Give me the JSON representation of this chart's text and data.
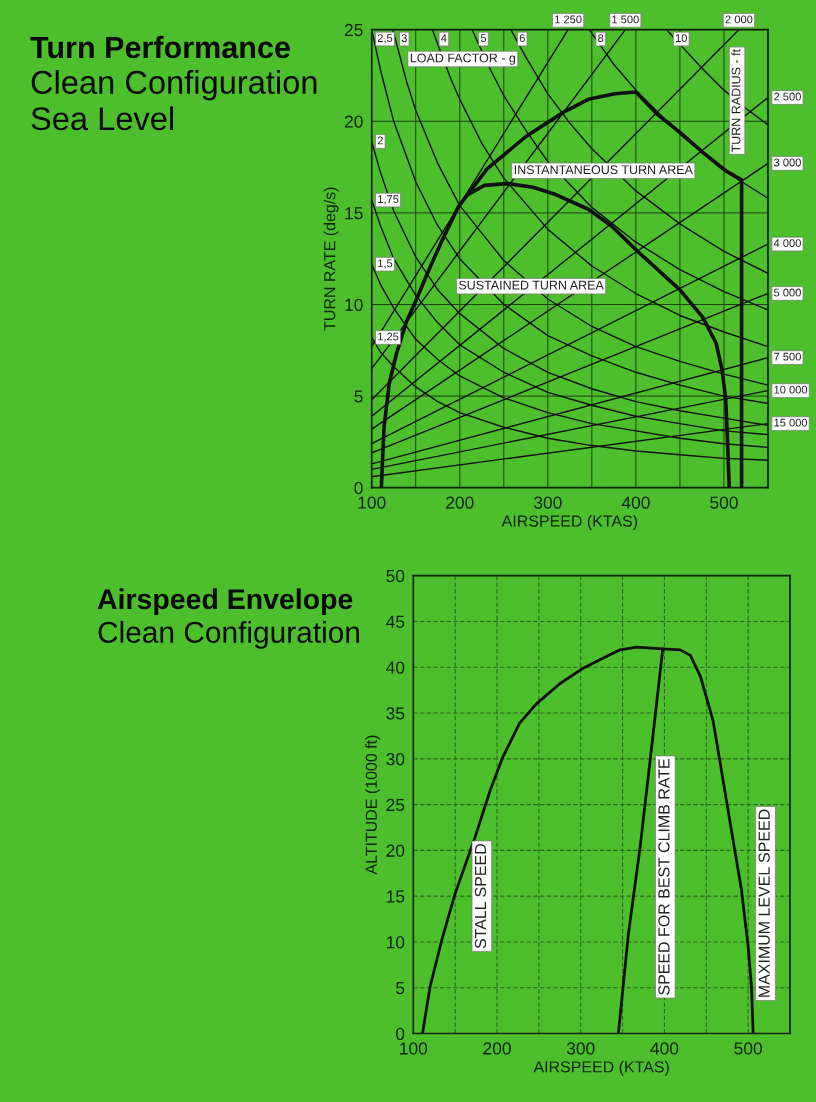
{
  "chart_data": [
    {
      "type": "line",
      "title": "Turn Performance",
      "subtitle": "Clean Configuration\nSea Level",
      "xlabel": "AIRSPEED (KTAS)",
      "ylabel": "TURN RATE (deg/s)",
      "xlim": [
        100,
        550
      ],
      "ylim": [
        0,
        25
      ],
      "xticks": [
        100,
        {
          "value": 150,
          "label": null
        },
        200,
        {
          "value": 250,
          "label": null
        },
        300,
        {
          "value": 350,
          "label": null
        },
        400,
        {
          "value": 450,
          "label": null
        },
        500,
        {
          "value": 550,
          "label": null
        }
      ],
      "yticks": [
        0,
        5,
        10,
        15,
        20,
        25
      ],
      "grid": true,
      "annotations": [
        "LOAD FACTOR - g",
        "TURN RADIUS - ft",
        {
          "text": "INSTANTANEOUS TURN AREA",
          "x": 363,
          "y": 17.3
        },
        {
          "text": "SUSTAINED TURN AREA",
          "x": 281,
          "y": 11.0
        }
      ],
      "series": [
        {
          "name": "1,25",
          "color": "#111111",
          "x": [
            100,
            110,
            125,
            150,
            175,
            200,
            250,
            300,
            350,
            400,
            450,
            500,
            550
          ],
          "values": [
            8.2,
            7.4,
            6.6,
            5.5,
            4.7,
            4.1,
            3.3,
            2.7,
            2.3,
            2.0,
            1.8,
            1.6,
            1.5
          ]
        },
        {
          "name": "1,5",
          "color": "#111111",
          "x": [
            100,
            110,
            125,
            150,
            175,
            200,
            250,
            300,
            350,
            400,
            450,
            500,
            550
          ],
          "values": [
            12.2,
            11.1,
            9.8,
            8.1,
            7.0,
            6.1,
            4.9,
            4.1,
            3.5,
            3.1,
            2.7,
            2.4,
            2.2
          ]
        },
        {
          "name": "1,75",
          "color": "#111111",
          "x": [
            100,
            110,
            125,
            150,
            175,
            200,
            250,
            300,
            350,
            400,
            450,
            500,
            550
          ],
          "values": [
            15.7,
            14.3,
            12.5,
            10.5,
            9.0,
            7.8,
            6.3,
            5.2,
            4.5,
            3.9,
            3.5,
            3.1,
            2.9
          ]
        },
        {
          "name": "2",
          "color": "#111111",
          "x": [
            100,
            110,
            125,
            150,
            175,
            200,
            250,
            300,
            350,
            400,
            450,
            500,
            550
          ],
          "values": [
            18.9,
            17.2,
            15.1,
            12.6,
            10.8,
            9.5,
            7.6,
            6.3,
            5.4,
            4.7,
            4.2,
            3.8,
            3.4
          ]
        },
        {
          "name": "2,5",
          "color": "#111111",
          "x": [
            100,
            110,
            125,
            150,
            175,
            200,
            250,
            300,
            350,
            400,
            450,
            500,
            550
          ],
          "values": [
            25.0,
            22.8,
            20.0,
            16.7,
            14.3,
            12.5,
            10.0,
            8.3,
            7.2,
            6.3,
            5.6,
            5.0,
            4.6
          ]
        },
        {
          "name": "3",
          "color": "#111111",
          "x": [
            124,
            140,
            150,
            175,
            200,
            250,
            300,
            350,
            400,
            450,
            500,
            550
          ],
          "values": [
            25.0,
            22.1,
            20.6,
            17.7,
            15.4,
            12.4,
            10.3,
            8.8,
            7.7,
            6.9,
            6.2,
            5.6
          ]
        },
        {
          "name": "4",
          "color": "#111111",
          "x": [
            169,
            175,
            190,
            200,
            225,
            250,
            300,
            350,
            400,
            450,
            500,
            550
          ],
          "values": [
            25.0,
            24.2,
            22.3,
            21.2,
            18.8,
            16.9,
            14.1,
            12.1,
            10.6,
            9.4,
            8.5,
            7.7
          ]
        },
        {
          "name": "5",
          "color": "#111111",
          "x": [
            214,
            235,
            250,
            275,
            300,
            350,
            400,
            450,
            500,
            550
          ],
          "values": [
            25.0,
            22.8,
            21.4,
            19.5,
            17.8,
            15.3,
            13.4,
            11.9,
            10.7,
            9.7
          ]
        },
        {
          "name": "6",
          "color": "#111111",
          "x": [
            258,
            275,
            300,
            325,
            350,
            400,
            450,
            500,
            550
          ],
          "values": [
            25.0,
            23.5,
            21.5,
            19.9,
            18.5,
            16.2,
            14.4,
            12.9,
            11.7
          ]
        },
        {
          "name": "8",
          "color": "#111111",
          "x": [
            347,
            375,
            400,
            450,
            500,
            550
          ],
          "values": [
            25.0,
            23.1,
            21.7,
            19.3,
            17.3,
            15.8
          ]
        },
        {
          "name": "10",
          "color": "#111111",
          "x": [
            435,
            450,
            475,
            500,
            525,
            550
          ],
          "values": [
            25.0,
            24.2,
            22.9,
            21.7,
            20.7,
            19.8
          ]
        },
        {
          "name": "1 250",
          "color": "#111111",
          "x": [
            100,
            323
          ],
          "values": [
            7.7,
            25.0
          ]
        },
        {
          "name": "1 500",
          "color": "#111111",
          "x": [
            100,
            388
          ],
          "values": [
            6.5,
            25.0
          ]
        },
        {
          "name": "2 000",
          "color": "#111111",
          "x": [
            100,
            517
          ],
          "values": [
            4.8,
            25.0
          ]
        },
        {
          "name": "2 500",
          "color": "#111111",
          "x": [
            100,
            550
          ],
          "values": [
            3.9,
            21.3
          ]
        },
        {
          "name": "3 000",
          "color": "#111111",
          "x": [
            100,
            550
          ],
          "values": [
            3.2,
            17.7
          ]
        },
        {
          "name": "4 000",
          "color": "#111111",
          "x": [
            100,
            550
          ],
          "values": [
            2.4,
            13.3
          ]
        },
        {
          "name": "5 000",
          "color": "#111111",
          "x": [
            100,
            550
          ],
          "values": [
            1.9,
            10.6
          ]
        },
        {
          "name": "7 500",
          "color": "#111111",
          "x": [
            100,
            550
          ],
          "values": [
            1.3,
            7.1
          ]
        },
        {
          "name": "10 000",
          "color": "#111111",
          "x": [
            100,
            550
          ],
          "values": [
            1.0,
            5.3
          ]
        },
        {
          "name": "15 000",
          "color": "#111111",
          "x": [
            100,
            550
          ],
          "values": [
            0.6,
            3.5
          ]
        },
        {
          "color": "#111111",
          "x": [
            111,
            112,
            114,
            120,
            128,
            139,
            151,
            165,
            180,
            198,
            231,
            276,
            318,
            346,
            376,
            400,
            424,
            450,
            476,
            502,
            520,
            520
          ],
          "values": [
            0,
            1.2,
            3.3,
            5.7,
            7.3,
            9.0,
            10.3,
            11.9,
            13.5,
            15.3,
            17.4,
            19.2,
            20.5,
            21.2,
            21.5,
            21.6,
            20.4,
            19.4,
            18.3,
            17.3,
            16.8,
            0
          ]
        },
        {
          "color": "#111111",
          "x": [
            209,
            228,
            254,
            283,
            309,
            346,
            372,
            402,
            450,
            476,
            491,
            498,
            502,
            504,
            506
          ],
          "values": [
            16.0,
            16.5,
            16.6,
            16.4,
            16.0,
            15.2,
            14.3,
            12.9,
            10.8,
            9.3,
            7.9,
            6.4,
            4.8,
            2.6,
            0
          ]
        }
      ]
    },
    {
      "type": "line",
      "title": "Airspeed Envelope",
      "subtitle": "Clean Configuration",
      "xlabel": "AIRSPEED (KTAS)",
      "ylabel": "ALTITUDE (1000 ft)",
      "xlim": [
        100,
        550
      ],
      "ylim": [
        0,
        50
      ],
      "xticks": [
        100,
        {
          "value": 150,
          "label": null
        },
        200,
        {
          "value": 250,
          "label": null
        },
        300,
        {
          "value": 350,
          "label": null
        },
        400,
        {
          "value": 450,
          "label": null
        },
        500,
        {
          "value": 550,
          "label": null
        }
      ],
      "yticks": [
        0,
        5,
        10,
        15,
        20,
        25,
        30,
        35,
        40,
        45,
        50
      ],
      "grid": true,
      "annotations": [
        "STALL SPEED",
        "SPEED FOR BEST CLIMB RATE",
        "MAXIMUM LEVEL SPEED"
      ],
      "series": [
        {
          "color": "#111111",
          "x": [
            111,
            120,
            134,
            150,
            174,
            192,
            207,
            227,
            247,
            275,
            303,
            327,
            347,
            367,
            398,
            419,
            431,
            443,
            458,
            466,
            478,
            492,
            500,
            504,
            506
          ],
          "values": [
            0,
            5.1,
            10.2,
            15.3,
            21.5,
            26.6,
            30.2,
            33.9,
            36.0,
            38.2,
            39.9,
            41.0,
            41.9,
            42.2,
            42.0,
            41.9,
            41.3,
            39.0,
            34.2,
            29.9,
            23.3,
            15.7,
            9.5,
            5.1,
            0
          ]
        },
        {
          "color": "#111111",
          "x": [
            345,
            357,
            371,
            383,
            398
          ],
          "values": [
            0,
            10.9,
            20.4,
            29.9,
            42.0
          ]
        }
      ]
    }
  ]
}
